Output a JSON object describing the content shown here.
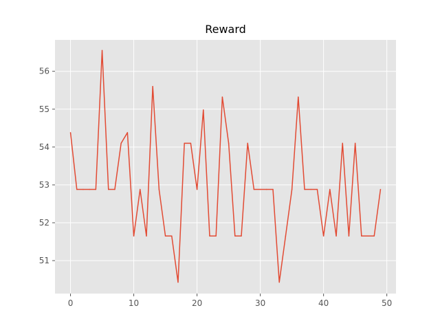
{
  "chart_data": {
    "type": "line",
    "title": "Reward",
    "xlabel": "",
    "ylabel": "",
    "xlim": [
      -2.45,
      51.45
    ],
    "ylim": [
      50.13,
      56.83
    ],
    "grid": true,
    "x_ticks": [
      0,
      10,
      20,
      30,
      40,
      50
    ],
    "y_ticks": [
      51,
      52,
      53,
      54,
      55,
      56
    ],
    "x": [
      0,
      1,
      2,
      3,
      4,
      5,
      6,
      7,
      8,
      9,
      10,
      11,
      12,
      13,
      14,
      15,
      16,
      17,
      18,
      19,
      20,
      21,
      22,
      23,
      24,
      25,
      26,
      27,
      28,
      29,
      30,
      31,
      32,
      33,
      34,
      35,
      36,
      37,
      38,
      39,
      40,
      41,
      42,
      43,
      44,
      45,
      46,
      47,
      48,
      49
    ],
    "series": [
      {
        "color": "#E24A33",
        "values": [
          54.38,
          52.88,
          52.88,
          52.88,
          52.88,
          56.55,
          52.88,
          52.88,
          54.1,
          54.38,
          51.65,
          52.88,
          51.65,
          55.6,
          52.88,
          51.65,
          51.65,
          50.43,
          54.1,
          54.1,
          52.88,
          54.98,
          51.65,
          51.65,
          55.32,
          54.1,
          51.65,
          51.65,
          54.1,
          52.88,
          52.88,
          52.88,
          52.88,
          50.43,
          51.65,
          52.88,
          55.32,
          52.88,
          52.88,
          52.88,
          51.65,
          52.88,
          51.65,
          54.1,
          51.65,
          54.1,
          51.65,
          51.65,
          51.65,
          52.88
        ]
      }
    ]
  }
}
